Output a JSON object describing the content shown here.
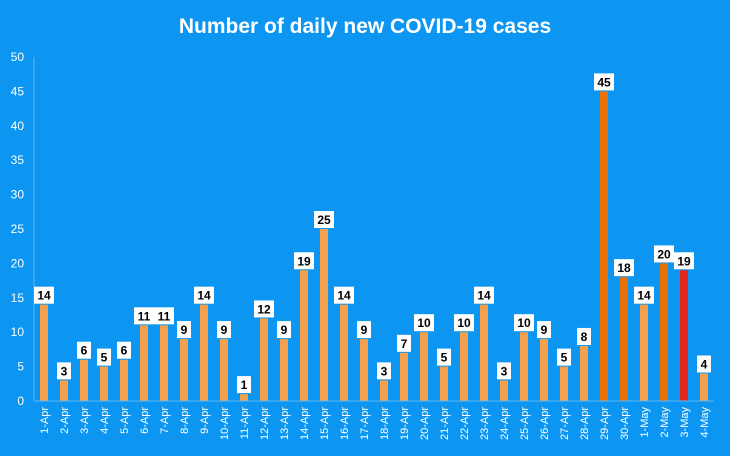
{
  "colors": {
    "background": "#0c96f2",
    "bar_default": "#f5a04c",
    "bar_recent": "#e8710a",
    "bar_highlight": "#e5281e",
    "text": "#ffffff"
  },
  "chart_data": {
    "type": "bar",
    "title": "Number of daily new COVID-19 cases",
    "xlabel": "",
    "ylabel": "",
    "ylim": [
      0,
      50
    ],
    "yticks": [
      0,
      5,
      10,
      15,
      20,
      25,
      30,
      35,
      40,
      45,
      50
    ],
    "grid": false,
    "legend": "none",
    "categories": [
      "1-Apr",
      "2-Apr",
      "3-Apr",
      "4-Apr",
      "5-Apr",
      "6-Apr",
      "7-Apr",
      "8-Apr",
      "9-Apr",
      "10-Apr",
      "11-Apr",
      "12-Apr",
      "13-Apr",
      "14-Apr",
      "15-Apr",
      "16-Apr",
      "17-Apr",
      "18-Apr",
      "19-Apr",
      "20-Apr",
      "21-Apr",
      "22-Apr",
      "23-Apr",
      "24-Apr",
      "25-Apr",
      "26-Apr",
      "27-Apr",
      "28-Apr",
      "29-Apr",
      "30-Apr",
      "1-May",
      "2-May",
      "3-May",
      "4-May"
    ],
    "values": [
      14,
      3,
      6,
      5,
      6,
      11,
      11,
      9,
      14,
      9,
      1,
      12,
      9,
      19,
      25,
      14,
      9,
      3,
      7,
      10,
      5,
      10,
      14,
      3,
      10,
      9,
      5,
      8,
      45,
      18,
      14,
      20,
      19,
      4
    ],
    "bar_colors": [
      "light",
      "light",
      "light",
      "light",
      "light",
      "light",
      "light",
      "light",
      "light",
      "light",
      "light",
      "light",
      "light",
      "light",
      "light",
      "light",
      "light",
      "light",
      "light",
      "light",
      "light",
      "light",
      "light",
      "light",
      "light",
      "light",
      "light",
      "light",
      "dark",
      "dark",
      "light",
      "dark",
      "red",
      "light"
    ]
  }
}
